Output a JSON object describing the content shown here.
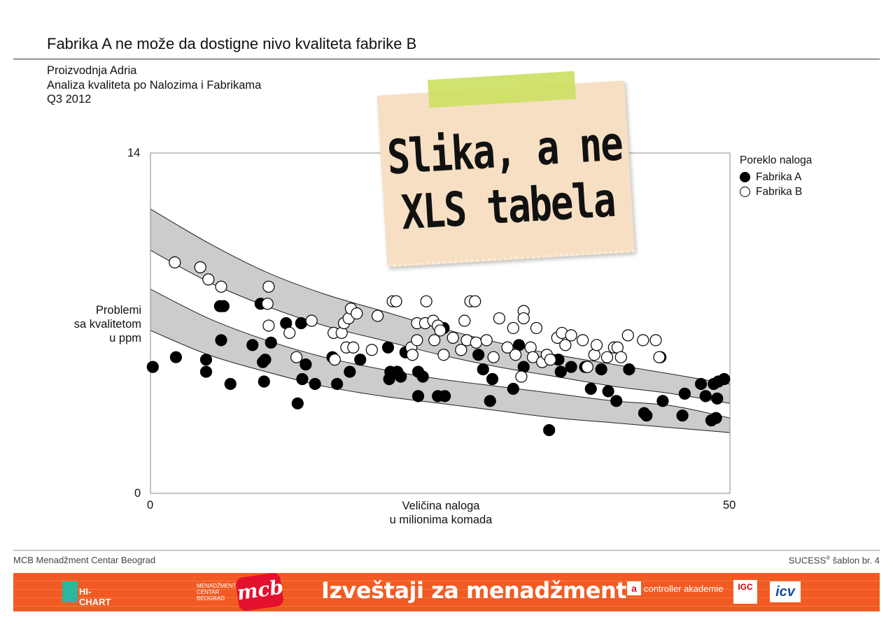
{
  "header": {
    "title": "Fabrika A ne može da dostigne nivo kvaliteta fabrike B",
    "subtitle_lines": [
      "Proizvodnja Adria",
      "Analiza kvaliteta po Nalozima i Fabrikama",
      "Q3 2012"
    ]
  },
  "note": {
    "line1": "Slika, a ne",
    "line2": "XLS tabela",
    "paper_color": "#f6dfc3",
    "tape_color": "#cde063"
  },
  "chart_data": {
    "type": "scatter",
    "ylabel_lines": [
      "Problemi",
      "sa kvalitetom",
      "u ppm"
    ],
    "xlabel_lines": [
      "Veličina naloga",
      "u milionima komada"
    ],
    "xlim": [
      0,
      50
    ],
    "ylim": [
      0,
      14
    ],
    "x_ticks": [
      "0",
      "50"
    ],
    "y_ticks": [
      "0",
      "14"
    ],
    "legend": {
      "title": "Poreklo naloga",
      "placement": "right",
      "entries": [
        {
          "label": "Fabrika A",
          "fill": "#000000"
        },
        {
          "label": "Fabrika B",
          "fill": "#ffffff"
        }
      ]
    },
    "band_color": "#cccccc",
    "bands": [
      {
        "upper": [
          [
            0,
            11.7
          ],
          [
            5,
            10.3
          ],
          [
            10,
            9.1
          ],
          [
            15,
            8.2
          ],
          [
            20,
            7.5
          ],
          [
            25,
            6.8
          ],
          [
            30,
            6.2
          ],
          [
            35,
            5.7
          ],
          [
            40,
            5.3
          ],
          [
            45,
            4.9
          ],
          [
            50,
            4.5
          ]
        ],
        "lower": [
          [
            0,
            10.0
          ],
          [
            5,
            8.7
          ],
          [
            10,
            7.7
          ],
          [
            15,
            6.9
          ],
          [
            20,
            6.3
          ],
          [
            25,
            5.7
          ],
          [
            30,
            5.2
          ],
          [
            35,
            4.8
          ],
          [
            40,
            4.4
          ],
          [
            45,
            4.1
          ],
          [
            50,
            3.7
          ]
        ]
      },
      {
        "upper": [
          [
            0,
            8.4
          ],
          [
            5,
            7.2
          ],
          [
            10,
            6.3
          ],
          [
            15,
            5.6
          ],
          [
            20,
            5.1
          ],
          [
            25,
            4.7
          ],
          [
            30,
            4.4
          ],
          [
            35,
            4.1
          ],
          [
            40,
            3.8
          ],
          [
            45,
            3.6
          ],
          [
            50,
            3.1
          ]
        ],
        "lower": [
          [
            0,
            6.7
          ],
          [
            5,
            5.7
          ],
          [
            10,
            5.0
          ],
          [
            15,
            4.4
          ],
          [
            20,
            4.0
          ],
          [
            25,
            3.7
          ],
          [
            30,
            3.4
          ],
          [
            35,
            3.1
          ],
          [
            40,
            2.9
          ],
          [
            45,
            2.7
          ],
          [
            50,
            2.5
          ]
        ]
      }
    ],
    "series": [
      {
        "name": "Fabrika A",
        "points": [
          [
            0.2,
            5.2
          ],
          [
            2.2,
            5.6
          ],
          [
            4.8,
            5.5
          ],
          [
            4.8,
            5.0
          ],
          [
            6.0,
            7.7
          ],
          [
            6.3,
            7.7
          ],
          [
            6.1,
            6.3
          ],
          [
            6.9,
            4.5
          ],
          [
            8.8,
            6.1
          ],
          [
            9.5,
            7.8
          ],
          [
            9.7,
            5.4
          ],
          [
            9.9,
            5.5
          ],
          [
            9.8,
            4.6
          ],
          [
            10.4,
            6.2
          ],
          [
            11.7,
            7.0
          ],
          [
            12.7,
            3.7
          ],
          [
            13.0,
            7.0
          ],
          [
            13.1,
            4.7
          ],
          [
            13.4,
            5.3
          ],
          [
            14.2,
            4.5
          ],
          [
            15.7,
            5.6
          ],
          [
            16.1,
            4.5
          ],
          [
            17.2,
            5.0
          ],
          [
            18.1,
            5.5
          ],
          [
            20.5,
            6.0
          ],
          [
            20.7,
            5.0
          ],
          [
            20.6,
            4.7
          ],
          [
            21.3,
            5.0
          ],
          [
            21.6,
            4.8
          ],
          [
            22.0,
            5.8
          ],
          [
            22.6,
            5.7
          ],
          [
            23.1,
            5.0
          ],
          [
            23.1,
            4.0
          ],
          [
            23.5,
            4.8
          ],
          [
            24.8,
            4.0
          ],
          [
            25.4,
            4.0
          ],
          [
            25.3,
            6.8
          ],
          [
            28.3,
            5.7
          ],
          [
            28.7,
            5.1
          ],
          [
            29.3,
            3.8
          ],
          [
            29.5,
            4.7
          ],
          [
            31.3,
            4.3
          ],
          [
            31.8,
            6.1
          ],
          [
            32.2,
            5.2
          ],
          [
            34.4,
            2.6
          ],
          [
            35.2,
            5.5
          ],
          [
            35.4,
            5.0
          ],
          [
            36.3,
            5.2
          ],
          [
            37.5,
            5.2
          ],
          [
            38.0,
            4.3
          ],
          [
            38.9,
            5.1
          ],
          [
            39.5,
            4.2
          ],
          [
            40.2,
            3.8
          ],
          [
            41.3,
            5.1
          ],
          [
            42.6,
            3.3
          ],
          [
            42.8,
            3.2
          ],
          [
            44.0,
            5.6
          ],
          [
            44.2,
            3.8
          ],
          [
            45.9,
            3.2
          ],
          [
            46.1,
            4.1
          ],
          [
            47.5,
            4.5
          ],
          [
            47.9,
            4.0
          ],
          [
            48.4,
            3.0
          ],
          [
            48.6,
            4.5
          ],
          [
            48.8,
            3.1
          ],
          [
            48.9,
            3.9
          ],
          [
            49.0,
            4.6
          ],
          [
            49.5,
            4.7
          ]
        ]
      },
      {
        "name": "Fabrika B",
        "points": [
          [
            2.1,
            9.5
          ],
          [
            4.3,
            9.3
          ],
          [
            5.0,
            8.8
          ],
          [
            6.1,
            8.5
          ],
          [
            10.2,
            8.5
          ],
          [
            10.1,
            7.8
          ],
          [
            10.2,
            6.9
          ],
          [
            12.0,
            6.6
          ],
          [
            12.6,
            5.6
          ],
          [
            13.9,
            7.1
          ],
          [
            15.9,
            5.5
          ],
          [
            15.8,
            6.6
          ],
          [
            16.5,
            6.6
          ],
          [
            16.7,
            7.0
          ],
          [
            16.9,
            6.0
          ],
          [
            17.1,
            7.2
          ],
          [
            17.3,
            7.6
          ],
          [
            17.5,
            6.0
          ],
          [
            17.8,
            7.4
          ],
          [
            19.1,
            5.9
          ],
          [
            19.6,
            7.3
          ],
          [
            20.9,
            7.9
          ],
          [
            21.2,
            7.9
          ],
          [
            22.5,
            6.0
          ],
          [
            22.6,
            5.7
          ],
          [
            23.0,
            6.3
          ],
          [
            23.0,
            7.0
          ],
          [
            23.7,
            7.0
          ],
          [
            23.8,
            7.9
          ],
          [
            24.4,
            7.1
          ],
          [
            24.5,
            6.3
          ],
          [
            24.8,
            6.9
          ],
          [
            25.0,
            6.7
          ],
          [
            25.3,
            5.7
          ],
          [
            26.1,
            6.4
          ],
          [
            26.8,
            5.9
          ],
          [
            27.1,
            7.1
          ],
          [
            27.3,
            6.3
          ],
          [
            27.6,
            7.9
          ],
          [
            28.0,
            7.9
          ],
          [
            28.1,
            6.2
          ],
          [
            29.0,
            6.3
          ],
          [
            29.6,
            5.6
          ],
          [
            30.1,
            7.2
          ],
          [
            30.8,
            6.0
          ],
          [
            31.3,
            6.8
          ],
          [
            31.5,
            5.7
          ],
          [
            32.0,
            4.8
          ],
          [
            32.2,
            7.5
          ],
          [
            32.2,
            7.2
          ],
          [
            32.8,
            6.0
          ],
          [
            33.0,
            5.6
          ],
          [
            33.3,
            6.8
          ],
          [
            33.8,
            5.4
          ],
          [
            34.2,
            5.7
          ],
          [
            34.5,
            5.5
          ],
          [
            35.1,
            6.4
          ],
          [
            35.5,
            6.6
          ],
          [
            35.8,
            6.1
          ],
          [
            36.3,
            6.5
          ],
          [
            37.3,
            6.3
          ],
          [
            37.7,
            5.2
          ],
          [
            38.3,
            5.7
          ],
          [
            38.5,
            6.1
          ],
          [
            39.4,
            5.6
          ],
          [
            40.0,
            6.0
          ],
          [
            40.3,
            6.0
          ],
          [
            40.6,
            5.6
          ],
          [
            41.2,
            6.5
          ],
          [
            42.5,
            6.3
          ],
          [
            43.9,
            5.6
          ],
          [
            43.6,
            6.3
          ]
        ]
      }
    ]
  },
  "footer": {
    "left": "MCB Menadžment Centar Beograd",
    "right_prefix": "SUCESS",
    "right_sup": "®",
    "right_suffix": " šablon br. 4"
  },
  "banner": {
    "title": "Izveštaji za menadžment",
    "logo_hichart": "HI-CHART",
    "logo_mc_lines": [
      "MENADŽMENT",
      "CENTAR",
      "BEOGRAD"
    ],
    "logo_mcb": "mcb",
    "logo_controller": "controller akademie",
    "logo_igc": "IGC",
    "logo_icv": "icv",
    "color": "#f15a22"
  }
}
